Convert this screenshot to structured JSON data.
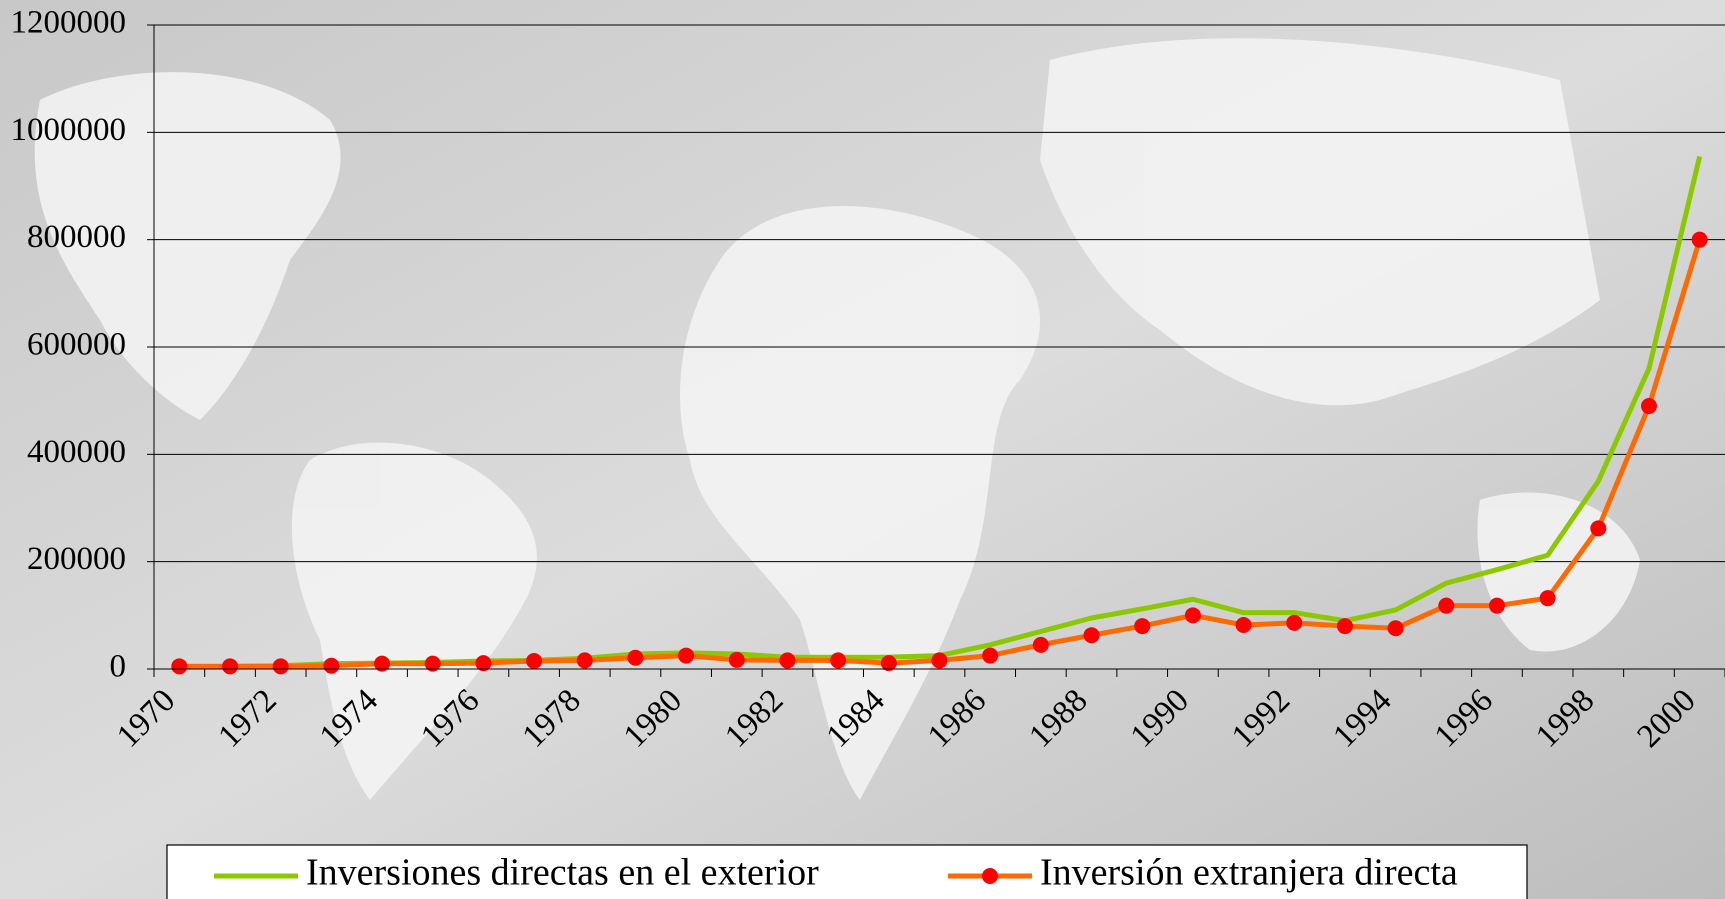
{
  "chart_data": {
    "type": "line",
    "categories": [
      "1970",
      null,
      "1972",
      null,
      "1974",
      null,
      "1976",
      null,
      "1978",
      null,
      "1980",
      null,
      "1982",
      null,
      "1984",
      null,
      "1986",
      null,
      "1988",
      null,
      "1990",
      null,
      "1992",
      null,
      "1994",
      null,
      "1996",
      null,
      "1998",
      null,
      "2000"
    ],
    "series": [
      {
        "name": "Inversiones directas en el exterior",
        "color": "#8cc800",
        "marker": false,
        "values": [
          5000,
          5000,
          6000,
          10000,
          11000,
          12000,
          15000,
          16000,
          20000,
          28000,
          30000,
          28000,
          22000,
          22000,
          22000,
          25000,
          45000,
          70000,
          95000,
          112000,
          130000,
          105000,
          105000,
          90000,
          110000,
          160000,
          185000,
          212000,
          350000,
          560000,
          955000
        ]
      },
      {
        "name": "Inversión extranjera directa",
        "color": "#ff6a00",
        "marker": true,
        "marker_color": "#ff0000",
        "values": [
          5000,
          5000,
          5000,
          6000,
          10000,
          10000,
          11000,
          15000,
          16000,
          21000,
          25000,
          17000,
          16000,
          16000,
          11000,
          16000,
          25000,
          45000,
          63000,
          80000,
          100000,
          82000,
          86000,
          80000,
          76000,
          118000,
          118000,
          132000,
          262000,
          490000,
          800000
        ]
      }
    ],
    "ylim": [
      0,
      1200000
    ],
    "yticks": [
      0,
      200000,
      400000,
      600000,
      800000,
      1000000,
      1200000
    ],
    "grid": true,
    "legend": "bottom"
  }
}
